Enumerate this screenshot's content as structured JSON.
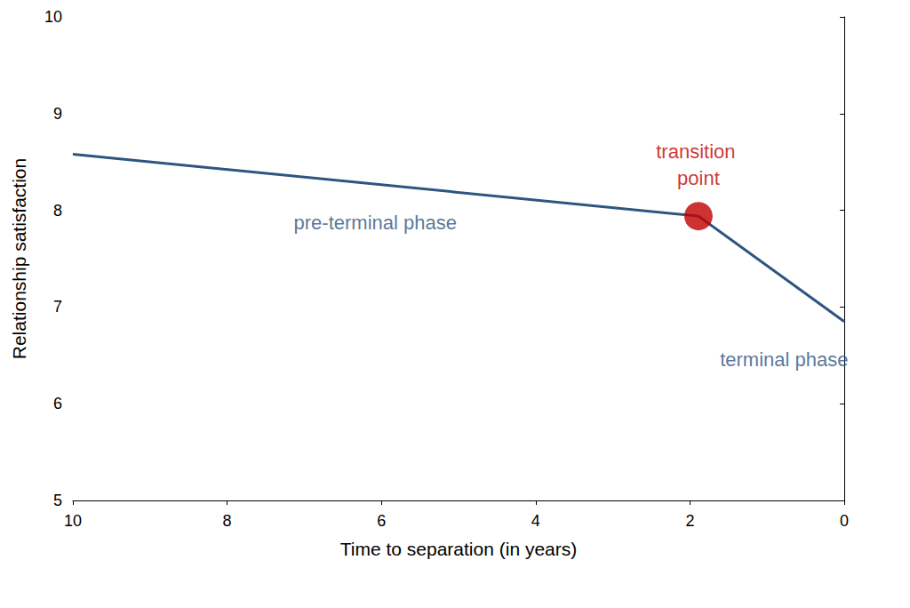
{
  "chart_data": {
    "type": "line",
    "x_label": "Time to separation (in years)",
    "y_label": "Relationship satisfaction",
    "x": [
      10,
      1.89,
      0
    ],
    "values": [
      8.58,
      7.94,
      6.85
    ],
    "color": "#2e5480",
    "xlim": [
      10,
      0
    ],
    "xticks": [
      10,
      8,
      6,
      4,
      2,
      0
    ],
    "ylim": [
      5,
      10
    ],
    "yticks": [
      5,
      6,
      7,
      8,
      9,
      10
    ],
    "grid": false,
    "annotations": [
      {
        "text": "pre-terminal phase",
        "x": 6.08,
        "y": 7.87,
        "color": "#2e5480"
      },
      {
        "text": "terminal phase",
        "x": 0.78,
        "y": 6.46,
        "color": "#2e5480"
      },
      {
        "text": "transition point",
        "x": 1.89,
        "y": 7.94,
        "color": "#c00000",
        "marker": "circle"
      }
    ]
  }
}
